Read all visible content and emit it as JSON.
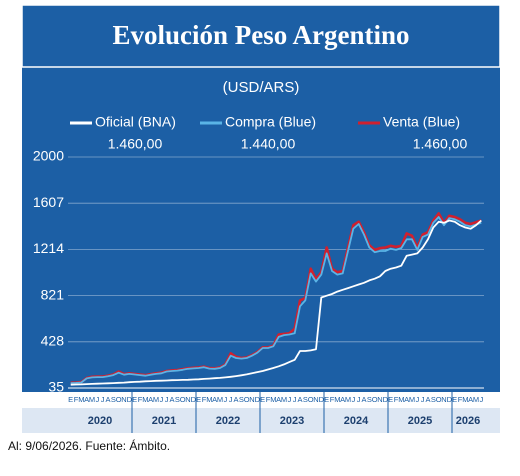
{
  "chart_data": {
    "type": "line",
    "title": "Evolución Peso Argentino",
    "subtitle": "(USD/ARS)",
    "footer": "Al: 9/06/2026. Fuente: Ámbito.",
    "categories": [
      "E",
      "F",
      "M",
      "A",
      "M",
      "J",
      "J",
      "A",
      "S",
      "O",
      "N",
      "D",
      "E",
      "F",
      "M",
      "A",
      "M",
      "J",
      "J",
      "A",
      "S",
      "O",
      "N",
      "D",
      "E",
      "F",
      "M",
      "A",
      "M",
      "J",
      "J",
      "A",
      "S",
      "O",
      "N",
      "D",
      "E",
      "F",
      "M",
      "A",
      "M",
      "J",
      "J",
      "A",
      "S",
      "O",
      "N",
      "D",
      "E",
      "F",
      "M",
      "A",
      "M",
      "J",
      "J",
      "A",
      "S",
      "O",
      "N",
      "D",
      "E",
      "F",
      "M",
      "A",
      "M",
      "J",
      "J",
      "A",
      "S",
      "O",
      "N",
      "D",
      "E",
      "F",
      "M",
      "A",
      "M",
      "J"
    ],
    "years": [
      "2020",
      "2021",
      "2022",
      "2023",
      "2024",
      "2025",
      "2026"
    ],
    "series": [
      {
        "name": "Oficial (BNA)",
        "color": "#ffffff",
        "latest_label": "1.460,00",
        "values": [
          63,
          65,
          66,
          68,
          70,
          72,
          73,
          75,
          77,
          79,
          81,
          84,
          87,
          89,
          92,
          94,
          96,
          97,
          99,
          101,
          102,
          104,
          105,
          107,
          109,
          112,
          115,
          118,
          121,
          125,
          130,
          136,
          143,
          151,
          160,
          170,
          180,
          192,
          205,
          220,
          236,
          255,
          275,
          350,
          350,
          355,
          365,
          805,
          820,
          835,
          855,
          870,
          885,
          900,
          915,
          930,
          950,
          965,
          985,
          1030,
          1050,
          1060,
          1075,
          1160,
          1170,
          1180,
          1230,
          1300,
          1400,
          1450,
          1440,
          1460,
          1450,
          1420,
          1400,
          1390,
          1420,
          1460
        ]
      },
      {
        "name": "Compra (Blue)",
        "color": "#5ab4e6",
        "latest_label": "1.440,00",
        "values": [
          77,
          78,
          82,
          117,
          125,
          128,
          128,
          135,
          145,
          165,
          148,
          155,
          150,
          145,
          140,
          148,
          155,
          160,
          175,
          180,
          183,
          190,
          198,
          202,
          205,
          212,
          200,
          198,
          205,
          230,
          310,
          290,
          285,
          290,
          310,
          335,
          375,
          375,
          390,
          470,
          485,
          490,
          500,
          730,
          780,
          1010,
          940,
          1000,
          1180,
          1030,
          1000,
          1010,
          1200,
          1390,
          1430,
          1340,
          1230,
          1190,
          1200,
          1200,
          1220,
          1210,
          1225,
          1300,
          1300,
          1210,
          1320,
          1340,
          1440,
          1490,
          1420,
          1480,
          1470,
          1450,
          1420,
          1410,
          1425,
          1440
        ]
      },
      {
        "name": "Venta (Blue)",
        "color": "#d0202e",
        "latest_label": "1.460,00",
        "values": [
          80,
          81,
          85,
          120,
          130,
          133,
          133,
          140,
          150,
          175,
          153,
          160,
          155,
          150,
          145,
          153,
          160,
          165,
          180,
          185,
          188,
          195,
          203,
          207,
          210,
          217,
          205,
          203,
          210,
          235,
          330,
          300,
          290,
          295,
          315,
          340,
          380,
          380,
          395,
          490,
          495,
          500,
          540,
          780,
          800,
          1050,
          960,
          1020,
          1230,
          1050,
          1020,
          1030,
          1230,
          1420,
          1450,
          1360,
          1250,
          1210,
          1225,
          1230,
          1245,
          1235,
          1245,
          1350,
          1330,
          1230,
          1340,
          1360,
          1460,
          1520,
          1440,
          1500,
          1490,
          1470,
          1440,
          1430,
          1445,
          1460
        ]
      }
    ],
    "ylim": [
      35,
      2000
    ],
    "yticks": [
      35,
      428,
      821,
      1214,
      1607,
      2000
    ],
    "grid": true
  }
}
